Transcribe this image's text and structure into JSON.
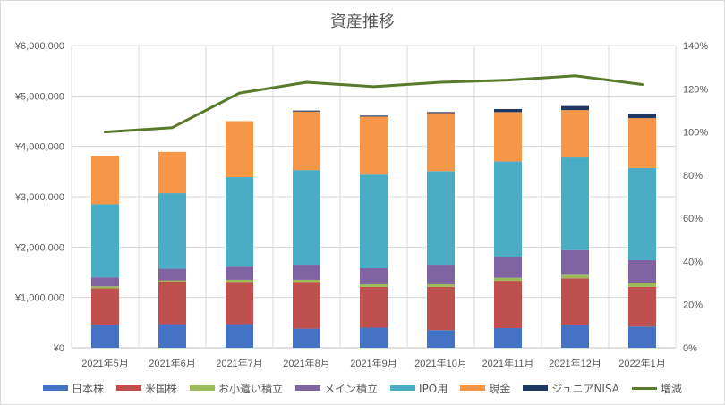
{
  "chart_data": {
    "type": "bar",
    "title": "資産推移",
    "categories": [
      "2021年5月",
      "2021年6月",
      "2021年7月",
      "2021年8月",
      "2021年9月",
      "2021年10月",
      "2021年11月",
      "2021年12月",
      "2022年1月"
    ],
    "ylim": [
      0,
      6000000
    ],
    "y_ticks": [
      "¥0",
      "¥1,000,000",
      "¥2,000,000",
      "¥3,000,000",
      "¥4,000,000",
      "¥5,000,000",
      "¥6,000,000"
    ],
    "y2lim": [
      0,
      140
    ],
    "y2_ticks": [
      "0%",
      "20%",
      "40%",
      "60%",
      "80%",
      "100%",
      "120%",
      "140%"
    ],
    "grid": true,
    "legend_position": "bottom",
    "series": [
      {
        "name": "日本株",
        "kind": "bar",
        "color": "#4472c4",
        "values": [
          460000,
          470000,
          470000,
          380000,
          400000,
          350000,
          390000,
          460000,
          420000
        ]
      },
      {
        "name": "米国株",
        "kind": "bar",
        "color": "#c0504d",
        "values": [
          720000,
          850000,
          840000,
          930000,
          810000,
          860000,
          940000,
          920000,
          790000
        ]
      },
      {
        "name": "お小遣い積立",
        "kind": "bar",
        "color": "#9bbb59",
        "values": [
          40000,
          20000,
          40000,
          40000,
          50000,
          50000,
          60000,
          70000,
          70000
        ]
      },
      {
        "name": "メイン積立",
        "kind": "bar",
        "color": "#8064a2",
        "values": [
          180000,
          230000,
          260000,
          300000,
          320000,
          390000,
          420000,
          490000,
          460000
        ]
      },
      {
        "name": "IPO用",
        "kind": "bar",
        "color": "#4bacc6",
        "values": [
          1450000,
          1500000,
          1780000,
          1880000,
          1860000,
          1860000,
          1890000,
          1840000,
          1830000
        ]
      },
      {
        "name": "現金",
        "kind": "bar",
        "color": "#f79646",
        "values": [
          960000,
          820000,
          1110000,
          1160000,
          1150000,
          1150000,
          980000,
          940000,
          990000
        ]
      },
      {
        "name": "ジュニアNISA",
        "kind": "bar",
        "color": "#1f3864",
        "values": [
          0,
          0,
          0,
          20000,
          20000,
          20000,
          60000,
          80000,
          80000
        ]
      },
      {
        "name": "増減",
        "kind": "line",
        "axis": "right",
        "color": "#5a7a2b",
        "values": [
          100,
          102,
          118,
          123,
          121,
          123,
          124,
          126,
          122
        ]
      }
    ]
  }
}
